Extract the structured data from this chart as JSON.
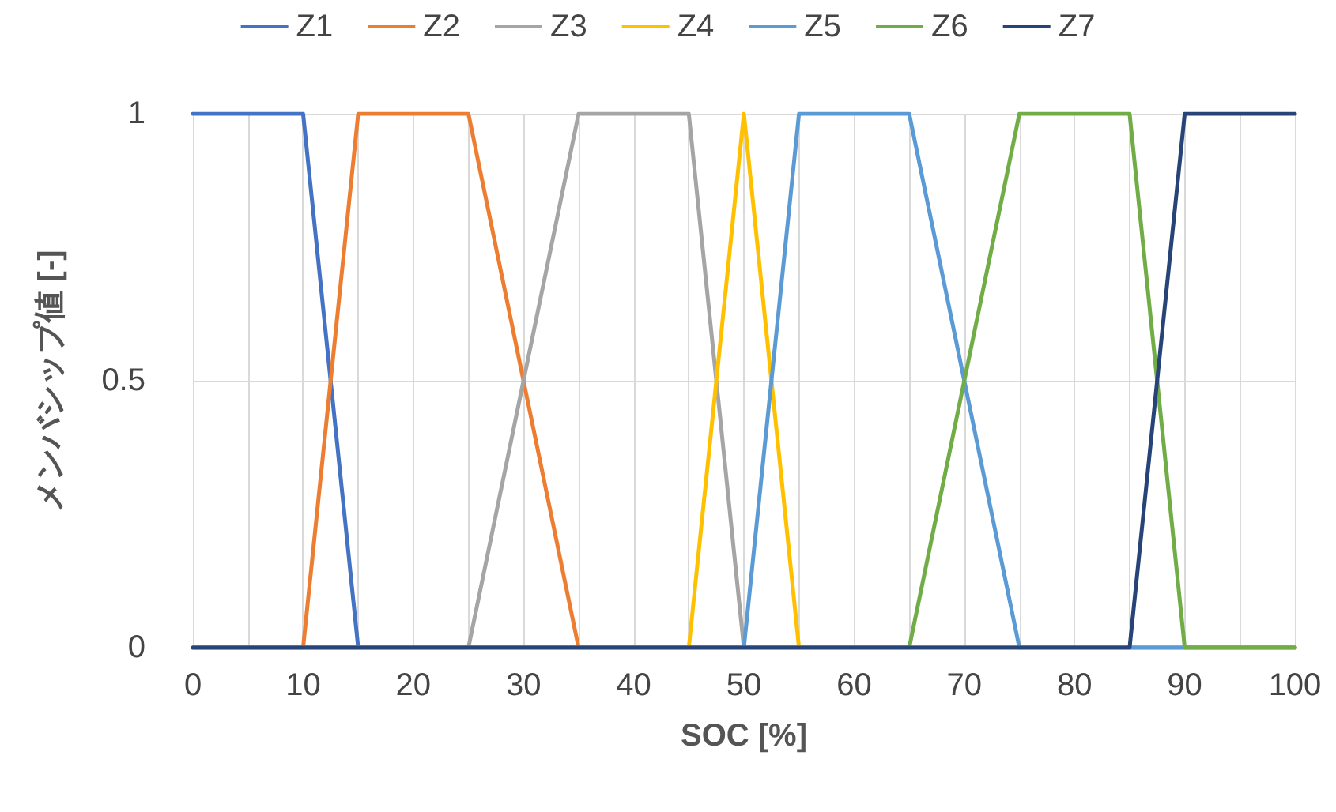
{
  "chart_data": {
    "type": "line",
    "xlabel": "SOC [%]",
    "ylabel": "メンバシップ値 [-]",
    "series": [
      {
        "name": "Z1",
        "color": "#4472c4",
        "x": [
          0,
          10,
          15
        ],
        "values": [
          1,
          1,
          0
        ]
      },
      {
        "name": "Z2",
        "color": "#ed7d31",
        "x": [
          0,
          10,
          15,
          25,
          35,
          100
        ],
        "values": [
          0,
          0,
          1,
          1,
          0,
          0
        ]
      },
      {
        "name": "Z3",
        "color": "#a5a5a5",
        "x": [
          0,
          25,
          35,
          45,
          50,
          100
        ],
        "values": [
          0,
          0,
          1,
          1,
          0,
          0
        ]
      },
      {
        "name": "Z4",
        "color": "#ffc000",
        "x": [
          0,
          45,
          50,
          55,
          100
        ],
        "values": [
          0,
          0,
          1,
          0,
          0
        ]
      },
      {
        "name": "Z5",
        "color": "#5b9bd5",
        "x": [
          0,
          50,
          55,
          65,
          75,
          100
        ],
        "values": [
          0,
          0,
          1,
          1,
          0,
          0
        ]
      },
      {
        "name": "Z6",
        "color": "#70ad47",
        "x": [
          0,
          65,
          75,
          85,
          90,
          100
        ],
        "values": [
          0,
          0,
          1,
          1,
          0,
          0
        ]
      },
      {
        "name": "Z7",
        "color": "#264478",
        "x": [
          0,
          85,
          90,
          100
        ],
        "values": [
          0,
          0,
          1,
          1
        ]
      }
    ],
    "xlim": [
      0,
      100
    ],
    "xticks": [
      0,
      10,
      20,
      30,
      40,
      50,
      60,
      70,
      80,
      90,
      100
    ],
    "ylim": [
      0,
      1
    ],
    "yticks": [
      0,
      0.5,
      1
    ],
    "grid": true,
    "legend": "top",
    "marker": "none",
    "line_style": "solid"
  }
}
